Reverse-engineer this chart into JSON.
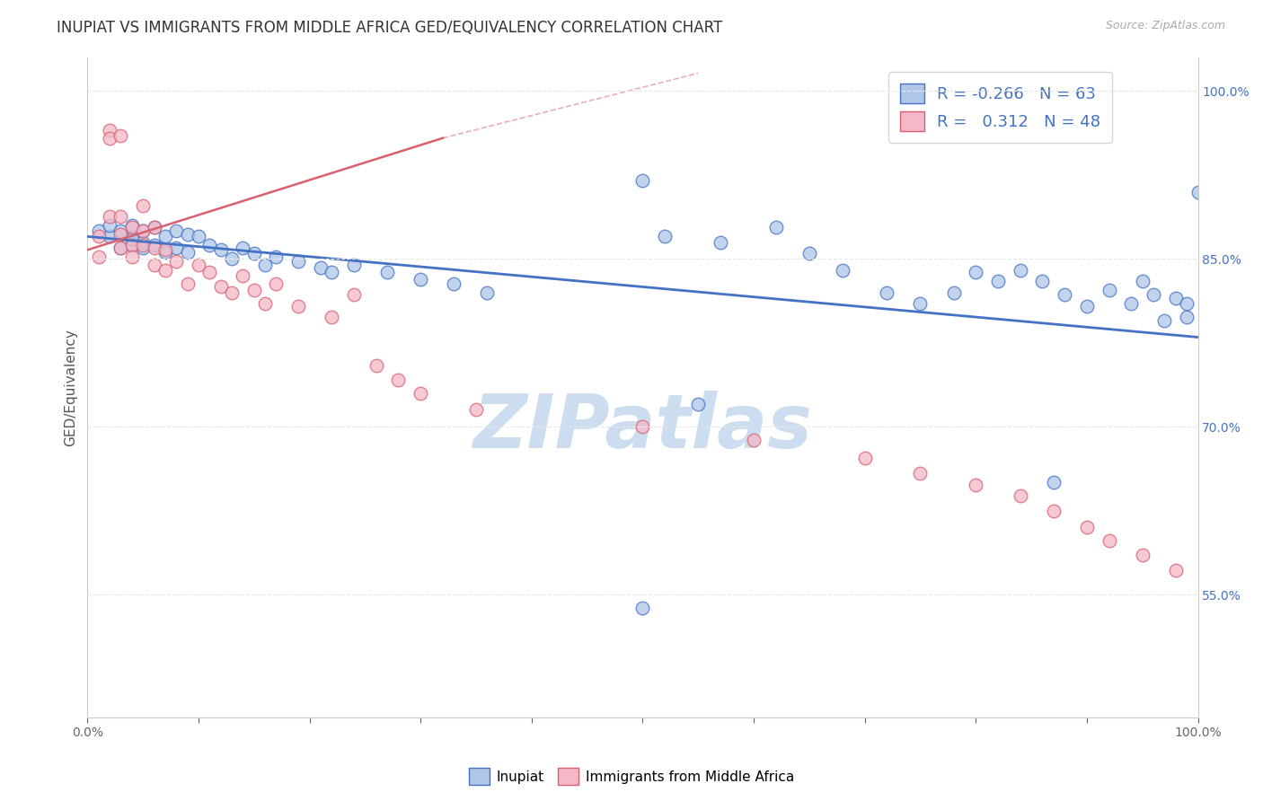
{
  "title": "INUPIAT VS IMMIGRANTS FROM MIDDLE AFRICA GED/EQUIVALENCY CORRELATION CHART",
  "source": "Source: ZipAtlas.com",
  "ylabel": "GED/Equivalency",
  "xlim": [
    0.0,
    1.0
  ],
  "ylim": [
    0.44,
    1.03
  ],
  "x_ticks": [
    0.0,
    0.1,
    0.2,
    0.3,
    0.4,
    0.5,
    0.6,
    0.7,
    0.8,
    0.9,
    1.0
  ],
  "y_tick_right": [
    0.55,
    0.7,
    0.85,
    1.0
  ],
  "y_tick_right_labels": [
    "55.0%",
    "70.0%",
    "85.0%",
    "100.0%"
  ],
  "legend_R1": "-0.266",
  "legend_N1": "63",
  "legend_R2": "0.312",
  "legend_N2": "48",
  "color_blue": "#aec6e8",
  "color_pink": "#f4b8c8",
  "color_blue_line": "#4472C4",
  "color_pink_line": "#d9606e",
  "watermark": "ZIPatlas",
  "watermark_color": "#ccddef",
  "blue_points_x": [
    0.01,
    0.02,
    0.02,
    0.03,
    0.03,
    0.04,
    0.04,
    0.04,
    0.04,
    0.05,
    0.05,
    0.05,
    0.06,
    0.06,
    0.07,
    0.07,
    0.08,
    0.08,
    0.09,
    0.09,
    0.1,
    0.11,
    0.12,
    0.13,
    0.14,
    0.15,
    0.16,
    0.17,
    0.19,
    0.21,
    0.22,
    0.24,
    0.27,
    0.3,
    0.33,
    0.36,
    0.5,
    0.52,
    0.57,
    0.62,
    0.65,
    0.68,
    0.72,
    0.75,
    0.78,
    0.8,
    0.82,
    0.84,
    0.86,
    0.88,
    0.9,
    0.92,
    0.94,
    0.95,
    0.96,
    0.97,
    0.98,
    0.99,
    0.99,
    1.0,
    0.5,
    0.55,
    0.87
  ],
  "blue_points_y": [
    0.875,
    0.87,
    0.88,
    0.86,
    0.875,
    0.87,
    0.862,
    0.88,
    0.868,
    0.875,
    0.865,
    0.86,
    0.878,
    0.862,
    0.87,
    0.856,
    0.875,
    0.86,
    0.872,
    0.856,
    0.87,
    0.862,
    0.858,
    0.85,
    0.86,
    0.855,
    0.845,
    0.852,
    0.848,
    0.842,
    0.838,
    0.845,
    0.838,
    0.832,
    0.828,
    0.82,
    0.92,
    0.87,
    0.865,
    0.878,
    0.855,
    0.84,
    0.82,
    0.81,
    0.82,
    0.838,
    0.83,
    0.84,
    0.83,
    0.818,
    0.808,
    0.822,
    0.81,
    0.83,
    0.818,
    0.795,
    0.815,
    0.81,
    0.798,
    0.91,
    0.538,
    0.72,
    0.65
  ],
  "pink_points_x": [
    0.01,
    0.01,
    0.02,
    0.02,
    0.02,
    0.03,
    0.03,
    0.03,
    0.03,
    0.04,
    0.04,
    0.04,
    0.05,
    0.05,
    0.05,
    0.06,
    0.06,
    0.06,
    0.07,
    0.07,
    0.08,
    0.09,
    0.1,
    0.11,
    0.12,
    0.13,
    0.14,
    0.15,
    0.16,
    0.17,
    0.19,
    0.22,
    0.24,
    0.26,
    0.28,
    0.3,
    0.35,
    0.5,
    0.6,
    0.7,
    0.75,
    0.8,
    0.84,
    0.87,
    0.9,
    0.92,
    0.95,
    0.98
  ],
  "pink_points_y": [
    0.87,
    0.852,
    0.965,
    0.958,
    0.888,
    0.96,
    0.888,
    0.872,
    0.86,
    0.878,
    0.862,
    0.852,
    0.898,
    0.875,
    0.862,
    0.878,
    0.86,
    0.845,
    0.858,
    0.84,
    0.848,
    0.828,
    0.845,
    0.838,
    0.825,
    0.82,
    0.835,
    0.822,
    0.81,
    0.828,
    0.808,
    0.798,
    0.818,
    0.755,
    0.742,
    0.73,
    0.715,
    0.7,
    0.688,
    0.672,
    0.658,
    0.648,
    0.638,
    0.625,
    0.61,
    0.598,
    0.585,
    0.572
  ],
  "blue_trend_x": [
    0.0,
    1.0
  ],
  "blue_trend_y": [
    0.87,
    0.78
  ],
  "pink_trend_x": [
    0.0,
    0.32
  ],
  "pink_trend_y": [
    0.858,
    0.958
  ],
  "grid_color": "#e8e8e8",
  "background_color": "#ffffff",
  "title_fontsize": 12,
  "axis_label_fontsize": 11,
  "tick_fontsize": 10,
  "legend_fontsize": 13
}
